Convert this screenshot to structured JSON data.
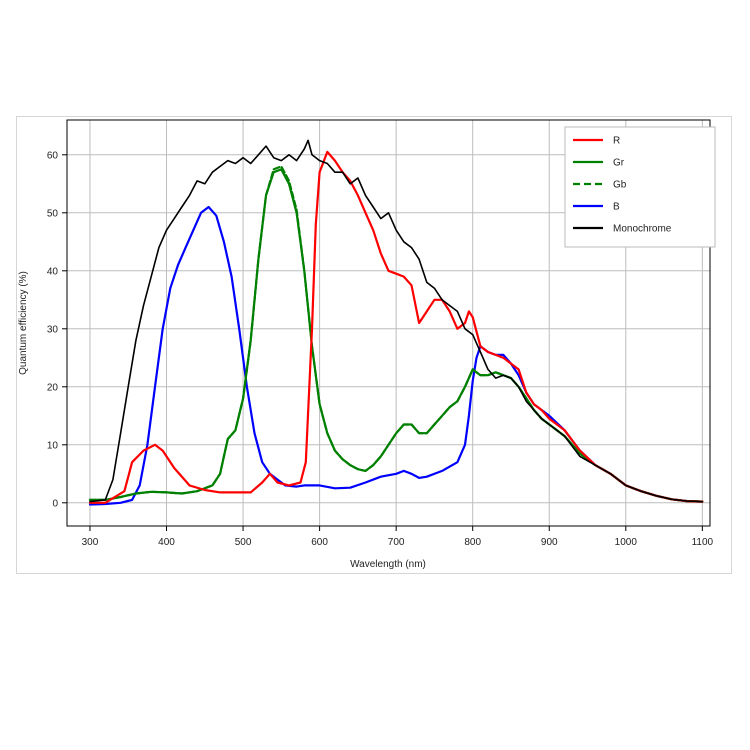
{
  "chart_data": {
    "type": "line",
    "xlabel": "Wavelength (nm)",
    "ylabel": "Quantum efficiency (%)",
    "xlim": [
      270,
      1110
    ],
    "ylim": [
      -4,
      66
    ],
    "xticks": [
      300,
      400,
      500,
      600,
      700,
      800,
      900,
      1000,
      1100
    ],
    "yticks": [
      0,
      10,
      20,
      30,
      40,
      50,
      60
    ],
    "grid": true,
    "legend_position": "top-right",
    "series": [
      {
        "name": "R",
        "color": "#ff0000",
        "dash": "solid",
        "points": [
          [
            300,
            0
          ],
          [
            320,
            0
          ],
          [
            345,
            2
          ],
          [
            355,
            7
          ],
          [
            370,
            9
          ],
          [
            385,
            10
          ],
          [
            395,
            9
          ],
          [
            410,
            6
          ],
          [
            430,
            3
          ],
          [
            450,
            2.2
          ],
          [
            470,
            1.8
          ],
          [
            490,
            1.8
          ],
          [
            510,
            1.8
          ],
          [
            525,
            3.5
          ],
          [
            535,
            5
          ],
          [
            545,
            3.5
          ],
          [
            560,
            3
          ],
          [
            575,
            3.5
          ],
          [
            582,
            7
          ],
          [
            590,
            30
          ],
          [
            595,
            48
          ],
          [
            600,
            57
          ],
          [
            610,
            60.5
          ],
          [
            620,
            59
          ],
          [
            630,
            57
          ],
          [
            640,
            55.5
          ],
          [
            650,
            53
          ],
          [
            660,
            50
          ],
          [
            670,
            47
          ],
          [
            680,
            43
          ],
          [
            690,
            40
          ],
          [
            700,
            39.5
          ],
          [
            710,
            39
          ],
          [
            720,
            37.5
          ],
          [
            730,
            31
          ],
          [
            740,
            33
          ],
          [
            750,
            35
          ],
          [
            760,
            35
          ],
          [
            770,
            33
          ],
          [
            780,
            30
          ],
          [
            790,
            31
          ],
          [
            795,
            33
          ],
          [
            800,
            32
          ],
          [
            810,
            27
          ],
          [
            820,
            26
          ],
          [
            830,
            25.5
          ],
          [
            840,
            25
          ],
          [
            850,
            24
          ],
          [
            860,
            23
          ],
          [
            870,
            19
          ],
          [
            880,
            17
          ],
          [
            890,
            16
          ],
          [
            900,
            14.5
          ],
          [
            920,
            12.5
          ],
          [
            940,
            9
          ],
          [
            960,
            6.5
          ],
          [
            980,
            5
          ],
          [
            1000,
            3
          ],
          [
            1020,
            2
          ],
          [
            1040,
            1.2
          ],
          [
            1060,
            0.6
          ],
          [
            1080,
            0.3
          ],
          [
            1100,
            0.2
          ]
        ]
      },
      {
        "name": "Gr",
        "color": "#008000",
        "dash": "solid",
        "points": [
          [
            300,
            0.5
          ],
          [
            320,
            0.5
          ],
          [
            340,
            1
          ],
          [
            360,
            1.6
          ],
          [
            380,
            1.9
          ],
          [
            400,
            1.8
          ],
          [
            420,
            1.6
          ],
          [
            440,
            2
          ],
          [
            460,
            3
          ],
          [
            470,
            5
          ],
          [
            475,
            8
          ],
          [
            480,
            11
          ],
          [
            490,
            12.5
          ],
          [
            500,
            18
          ],
          [
            510,
            28
          ],
          [
            520,
            42
          ],
          [
            530,
            53
          ],
          [
            540,
            57
          ],
          [
            550,
            57.5
          ],
          [
            560,
            55
          ],
          [
            570,
            50
          ],
          [
            580,
            40
          ],
          [
            590,
            27
          ],
          [
            600,
            17
          ],
          [
            610,
            12
          ],
          [
            620,
            9
          ],
          [
            630,
            7.5
          ],
          [
            640,
            6.5
          ],
          [
            650,
            5.8
          ],
          [
            660,
            5.5
          ],
          [
            670,
            6.5
          ],
          [
            680,
            8
          ],
          [
            690,
            10
          ],
          [
            700,
            12
          ],
          [
            710,
            13.5
          ],
          [
            720,
            13.5
          ],
          [
            730,
            12
          ],
          [
            740,
            12
          ],
          [
            750,
            13.5
          ],
          [
            760,
            15
          ],
          [
            770,
            16.5
          ],
          [
            780,
            17.5
          ],
          [
            790,
            20
          ],
          [
            800,
            23
          ],
          [
            810,
            22
          ],
          [
            820,
            22
          ],
          [
            830,
            22.5
          ],
          [
            840,
            22
          ],
          [
            850,
            21.5
          ],
          [
            860,
            20
          ],
          [
            870,
            18
          ],
          [
            880,
            16
          ],
          [
            890,
            14.5
          ],
          [
            900,
            13.5
          ],
          [
            920,
            11.5
          ],
          [
            940,
            8.5
          ],
          [
            960,
            6.5
          ],
          [
            980,
            5
          ],
          [
            1000,
            3
          ],
          [
            1020,
            2
          ],
          [
            1040,
            1.2
          ],
          [
            1060,
            0.6
          ],
          [
            1080,
            0.3
          ],
          [
            1100,
            0.2
          ]
        ]
      },
      {
        "name": "Gb",
        "color": "#008000",
        "dash": "dashed",
        "points": [
          [
            300,
            0.5
          ],
          [
            320,
            0.5
          ],
          [
            340,
            1
          ],
          [
            360,
            1.6
          ],
          [
            380,
            1.9
          ],
          [
            400,
            1.8
          ],
          [
            420,
            1.6
          ],
          [
            440,
            2
          ],
          [
            460,
            3
          ],
          [
            470,
            5
          ],
          [
            475,
            8
          ],
          [
            480,
            11
          ],
          [
            490,
            12.5
          ],
          [
            500,
            18
          ],
          [
            510,
            28
          ],
          [
            520,
            42
          ],
          [
            530,
            53
          ],
          [
            540,
            57.5
          ],
          [
            550,
            58
          ],
          [
            560,
            55.5
          ],
          [
            570,
            50.5
          ],
          [
            580,
            40
          ],
          [
            590,
            27
          ],
          [
            600,
            17
          ],
          [
            610,
            12
          ],
          [
            620,
            9
          ],
          [
            630,
            7.5
          ],
          [
            640,
            6.5
          ],
          [
            650,
            5.8
          ],
          [
            660,
            5.5
          ],
          [
            670,
            6.5
          ],
          [
            680,
            8
          ],
          [
            690,
            10
          ],
          [
            700,
            12
          ],
          [
            710,
            13.5
          ],
          [
            720,
            13.5
          ],
          [
            730,
            12
          ],
          [
            740,
            12
          ],
          [
            750,
            13.5
          ],
          [
            760,
            15
          ],
          [
            770,
            16.5
          ],
          [
            780,
            17.5
          ],
          [
            790,
            20
          ],
          [
            800,
            23
          ],
          [
            810,
            22
          ],
          [
            820,
            22
          ],
          [
            830,
            22.5
          ],
          [
            840,
            22
          ],
          [
            850,
            21.5
          ],
          [
            860,
            20
          ],
          [
            870,
            18
          ],
          [
            880,
            16
          ],
          [
            890,
            14.5
          ],
          [
            900,
            13.5
          ],
          [
            920,
            11.5
          ],
          [
            940,
            8.5
          ],
          [
            960,
            6.5
          ],
          [
            980,
            5
          ],
          [
            1000,
            3
          ],
          [
            1020,
            2
          ],
          [
            1040,
            1.2
          ],
          [
            1060,
            0.6
          ],
          [
            1080,
            0.3
          ],
          [
            1100,
            0.2
          ]
        ]
      },
      {
        "name": "B",
        "color": "#0000ff",
        "dash": "solid",
        "points": [
          [
            300,
            -0.3
          ],
          [
            320,
            -0.2
          ],
          [
            340,
            0
          ],
          [
            355,
            0.5
          ],
          [
            365,
            3
          ],
          [
            375,
            10
          ],
          [
            385,
            20
          ],
          [
            395,
            30
          ],
          [
            405,
            37
          ],
          [
            415,
            41
          ],
          [
            425,
            44
          ],
          [
            435,
            47
          ],
          [
            445,
            50
          ],
          [
            455,
            51
          ],
          [
            465,
            49.5
          ],
          [
            475,
            45
          ],
          [
            485,
            39
          ],
          [
            495,
            30
          ],
          [
            505,
            20
          ],
          [
            515,
            12
          ],
          [
            525,
            7
          ],
          [
            535,
            5
          ],
          [
            545,
            4
          ],
          [
            555,
            3
          ],
          [
            570,
            2.8
          ],
          [
            580,
            3
          ],
          [
            600,
            3
          ],
          [
            620,
            2.5
          ],
          [
            640,
            2.6
          ],
          [
            660,
            3.5
          ],
          [
            680,
            4.5
          ],
          [
            700,
            5
          ],
          [
            710,
            5.5
          ],
          [
            720,
            5
          ],
          [
            730,
            4.3
          ],
          [
            740,
            4.5
          ],
          [
            760,
            5.5
          ],
          [
            780,
            7
          ],
          [
            790,
            10
          ],
          [
            795,
            15
          ],
          [
            800,
            21
          ],
          [
            805,
            25
          ],
          [
            810,
            27
          ],
          [
            820,
            26
          ],
          [
            830,
            25.5
          ],
          [
            840,
            25.5
          ],
          [
            850,
            24
          ],
          [
            860,
            22
          ],
          [
            870,
            19
          ],
          [
            880,
            17
          ],
          [
            890,
            16
          ],
          [
            900,
            15
          ],
          [
            920,
            12.5
          ],
          [
            940,
            9
          ],
          [
            960,
            6.5
          ],
          [
            980,
            5
          ],
          [
            1000,
            3
          ],
          [
            1020,
            2
          ],
          [
            1040,
            1.2
          ],
          [
            1060,
            0.6
          ],
          [
            1080,
            0.3
          ],
          [
            1100,
            0.2
          ]
        ]
      },
      {
        "name": "Monochrome",
        "color": "#000000",
        "dash": "solid",
        "points": [
          [
            300,
            0.2
          ],
          [
            320,
            0.5
          ],
          [
            330,
            4
          ],
          [
            340,
            12
          ],
          [
            350,
            20
          ],
          [
            360,
            28
          ],
          [
            370,
            34
          ],
          [
            380,
            39
          ],
          [
            390,
            44
          ],
          [
            400,
            47
          ],
          [
            410,
            49
          ],
          [
            420,
            51
          ],
          [
            430,
            53
          ],
          [
            440,
            55.5
          ],
          [
            450,
            55
          ],
          [
            460,
            57
          ],
          [
            470,
            58
          ],
          [
            480,
            59
          ],
          [
            490,
            58.5
          ],
          [
            500,
            59.5
          ],
          [
            510,
            58.5
          ],
          [
            520,
            60
          ],
          [
            530,
            61.5
          ],
          [
            540,
            59.5
          ],
          [
            550,
            59
          ],
          [
            560,
            60
          ],
          [
            570,
            59
          ],
          [
            580,
            61
          ],
          [
            585,
            62.5
          ],
          [
            590,
            60
          ],
          [
            600,
            59
          ],
          [
            610,
            58.5
          ],
          [
            620,
            57
          ],
          [
            630,
            57
          ],
          [
            640,
            55
          ],
          [
            650,
            56
          ],
          [
            660,
            53
          ],
          [
            670,
            51
          ],
          [
            680,
            49
          ],
          [
            690,
            50
          ],
          [
            700,
            47
          ],
          [
            710,
            45
          ],
          [
            720,
            44
          ],
          [
            730,
            42
          ],
          [
            740,
            38
          ],
          [
            750,
            37
          ],
          [
            760,
            35
          ],
          [
            770,
            34
          ],
          [
            780,
            33
          ],
          [
            790,
            30
          ],
          [
            800,
            29
          ],
          [
            810,
            26
          ],
          [
            820,
            23
          ],
          [
            830,
            21.5
          ],
          [
            840,
            22
          ],
          [
            850,
            21.5
          ],
          [
            860,
            20
          ],
          [
            870,
            17.5
          ],
          [
            880,
            16
          ],
          [
            890,
            14.5
          ],
          [
            900,
            13.5
          ],
          [
            920,
            11.5
          ],
          [
            940,
            8
          ],
          [
            960,
            6.5
          ],
          [
            980,
            5
          ],
          [
            1000,
            3
          ],
          [
            1020,
            2
          ],
          [
            1040,
            1.2
          ],
          [
            1060,
            0.6
          ],
          [
            1080,
            0.3
          ],
          [
            1100,
            0.2
          ]
        ]
      }
    ]
  }
}
